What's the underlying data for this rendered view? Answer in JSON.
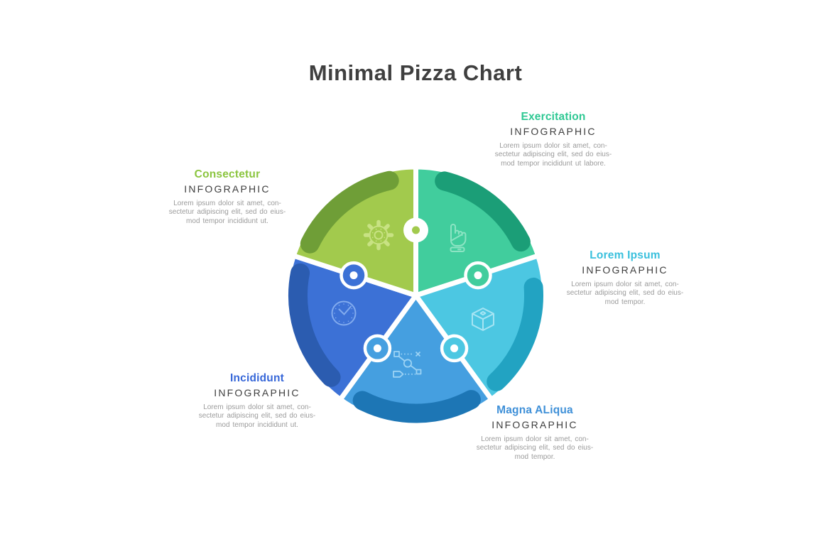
{
  "title": "Minimal Pizza Chart",
  "segments": [
    {
      "id": "exercitation",
      "heading": "Exercitation",
      "subheading": "INFOGRAPHIC",
      "body": "Lorem ipsum dolor sit amet, con-\nsectetur adipiscing elit, sed do eius-\nmod tempor incididunt ut labore.",
      "heading_color": "#2ec893",
      "slice_color": "#41cd9d",
      "accent_color": "#1b9e77",
      "icon": "pointer-hand-icon",
      "icon_color": "#8ce4c3"
    },
    {
      "id": "lorem-ipsum",
      "heading": "Lorem Ipsum",
      "subheading": "INFOGRAPHIC",
      "body": "Lorem ipsum dolor sit amet, con-\nsectetur adipiscing elit, sed do eius-\nmod tempor.",
      "heading_color": "#3ac0dd",
      "slice_color": "#4cc7e2",
      "accent_color": "#22a3c2",
      "icon": "cube-icon",
      "icon_color": "#a5e4f3"
    },
    {
      "id": "magna-aliqua",
      "heading": "Magna ALiqua",
      "subheading": "INFOGRAPHIC",
      "body": "Lorem ipsum dolor sit amet, con-\nsectetur adipiscing elit, sed do eius-\nmod tempor.",
      "heading_color": "#3f90d8",
      "slice_color": "#459fe0",
      "accent_color": "#1d76b5",
      "icon": "route-icon",
      "icon_color": "#9bd2f4"
    },
    {
      "id": "incididunt",
      "heading": "Incididunt",
      "subheading": "INFOGRAPHIC",
      "body": "Lorem ipsum dolor sit amet, con-\nsectetur adipiscing elit, sed do eius-\nmod tempor incididunt ut.",
      "heading_color": "#3767d8",
      "slice_color": "#3c71d6",
      "accent_color": "#2b5cb0",
      "icon": "clock-icon",
      "icon_color": "#82abee"
    },
    {
      "id": "consectetur",
      "heading": "Consectetur",
      "subheading": "INFOGRAPHIC",
      "body": "Lorem ipsum dolor sit amet, con-\nsectetur adipiscing elit, sed do eius-\nmod tempor incididunt ut.",
      "heading_color": "#8bc53f",
      "slice_color": "#a2ca4d",
      "accent_color": "#6f9e37",
      "icon": "gear-icon",
      "icon_color": "#c8e283"
    }
  ]
}
